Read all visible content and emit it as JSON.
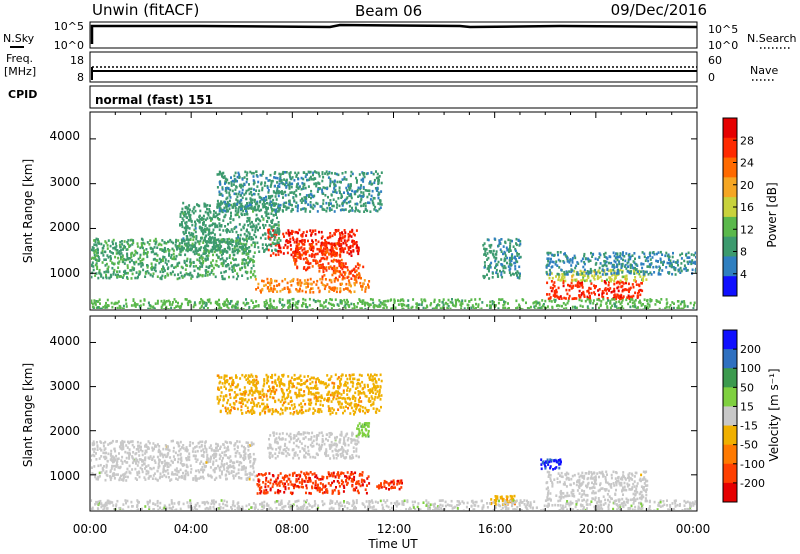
{
  "header": {
    "station": "Unwin (fitACF)",
    "beam": "Beam 06",
    "date": "09/Dec/2016"
  },
  "noise_panel": {
    "left_label": "N.Sky",
    "right_label": "N.Search",
    "left_ticks": [
      "10^5",
      "10^0"
    ],
    "right_ticks": [
      "10^5",
      "10^0"
    ]
  },
  "freq_panel": {
    "left_label_line1": "Freq.",
    "left_label_line2": "[MHz]",
    "right_label": "Nave",
    "left_ticks": [
      "18",
      "8"
    ],
    "right_ticks": [
      "60",
      "0"
    ]
  },
  "cpid_panel": {
    "label": "CPID",
    "value": "normal (fast) 151"
  },
  "x_axis": {
    "label": "Time UT",
    "ticks": [
      "00:00",
      "04:00",
      "08:00",
      "12:00",
      "16:00",
      "20:00",
      "00:00"
    ]
  },
  "power_panel": {
    "ylabel": "Slant Range [km]",
    "yticks": [
      "4000",
      "3000",
      "2000",
      "1000"
    ],
    "colorbar_label": "Power [dB]",
    "colorbar_ticks": [
      "28",
      "24",
      "20",
      "16",
      "12",
      "8",
      "4"
    ]
  },
  "velocity_panel": {
    "ylabel": "Slant Range [km]",
    "yticks": [
      "4000",
      "3000",
      "2000",
      "1000"
    ],
    "colorbar_label": "Velocity [m s⁻¹]",
    "colorbar_ticks": [
      "200",
      "100",
      "50",
      "15",
      "-15",
      "-50",
      "-100",
      "-200"
    ]
  },
  "chart_data": [
    {
      "type": "heatmap",
      "title": "Unwin (fitACF) Beam 06 09/Dec/2016",
      "xlabel": "Time UT",
      "ylabel": "Slant Range [km]",
      "xlim_hours": [
        0,
        24
      ],
      "ylim_km": [
        180,
        4600
      ],
      "value_label": "Power [dB]",
      "value_range": [
        0,
        32
      ],
      "colors": [
        "#1010ff",
        "#2f7fc0",
        "#3c9a6e",
        "#5ab84b",
        "#c8d23c",
        "#f5a623",
        "#ff6a00",
        "#ff2a00",
        "#e60000"
      ],
      "regions": [
        {
          "t0": 7.0,
          "t1": 10.6,
          "r0": 1400,
          "r1": 2000,
          "value": 28
        },
        {
          "t0": 8.0,
          "t1": 10.0,
          "r0": 1100,
          "r1": 1700,
          "value": 26
        },
        {
          "t0": 6.5,
          "t1": 11.0,
          "r0": 600,
          "r1": 900,
          "value": 22
        },
        {
          "t0": 9.0,
          "t1": 10.8,
          "r0": 900,
          "r1": 1250,
          "value": 25
        },
        {
          "t0": 18.0,
          "t1": 21.8,
          "r0": 450,
          "r1": 850,
          "value": 27
        },
        {
          "t0": 18.0,
          "t1": 22.0,
          "r0": 850,
          "r1": 1100,
          "value": 16
        },
        {
          "t0": 0.0,
          "t1": 6.5,
          "r0": 900,
          "r1": 1800,
          "value": 10
        },
        {
          "t0": 3.5,
          "t1": 7.5,
          "r0": 1500,
          "r1": 2600,
          "value": 9
        },
        {
          "t0": 5.0,
          "t1": 11.5,
          "r0": 2400,
          "r1": 3300,
          "value": 8
        },
        {
          "t0": 0.0,
          "t1": 24.0,
          "r0": 200,
          "r1": 450,
          "value": 12
        },
        {
          "t0": 15.5,
          "t1": 17.0,
          "r0": 900,
          "r1": 1800,
          "value": 8
        },
        {
          "t0": 18.0,
          "t1": 24.0,
          "r0": 1000,
          "r1": 1500,
          "value": 7
        }
      ]
    },
    {
      "type": "heatmap",
      "title": "Unwin (fitACF) Beam 06 09/Dec/2016",
      "xlabel": "Time UT",
      "ylabel": "Slant Range [km]",
      "xlim_hours": [
        0,
        24
      ],
      "ylim_km": [
        180,
        4600
      ],
      "value_label": "Velocity [m s-1]",
      "value_range": [
        -250,
        250
      ],
      "ground_scatter_color": "#c8c8c8",
      "colors": [
        "#e60000",
        "#ff4000",
        "#ff7a00",
        "#f0b000",
        "#c8c8c8",
        "#7fd040",
        "#3c9a4e",
        "#2f70c0",
        "#1010ff"
      ],
      "regions": [
        {
          "t0": 7.0,
          "t1": 10.6,
          "r0": 1400,
          "r1": 2000,
          "value": 0
        },
        {
          "t0": 6.5,
          "t1": 11.0,
          "r0": 600,
          "r1": 1100,
          "value": -180
        },
        {
          "t0": 0.0,
          "t1": 6.5,
          "r0": 900,
          "r1": 1800,
          "value": 0
        },
        {
          "t0": 18.0,
          "t1": 22.0,
          "r0": 450,
          "r1": 1100,
          "value": 0
        },
        {
          "t0": 17.8,
          "t1": 18.6,
          "r0": 1150,
          "r1": 1400,
          "value": 200
        },
        {
          "t0": 10.5,
          "t1": 11.0,
          "r0": 1900,
          "r1": 2200,
          "value": 60
        },
        {
          "t0": 11.3,
          "t1": 12.3,
          "r0": 700,
          "r1": 900,
          "value": -190
        },
        {
          "t0": 15.8,
          "t1": 16.8,
          "r0": 350,
          "r1": 550,
          "value": -60
        },
        {
          "t0": 5.0,
          "t1": 11.5,
          "r0": 2400,
          "r1": 3300,
          "value": -60
        },
        {
          "t0": 0.0,
          "t1": 24.0,
          "r0": 200,
          "r1": 450,
          "value": 20
        }
      ]
    }
  ]
}
